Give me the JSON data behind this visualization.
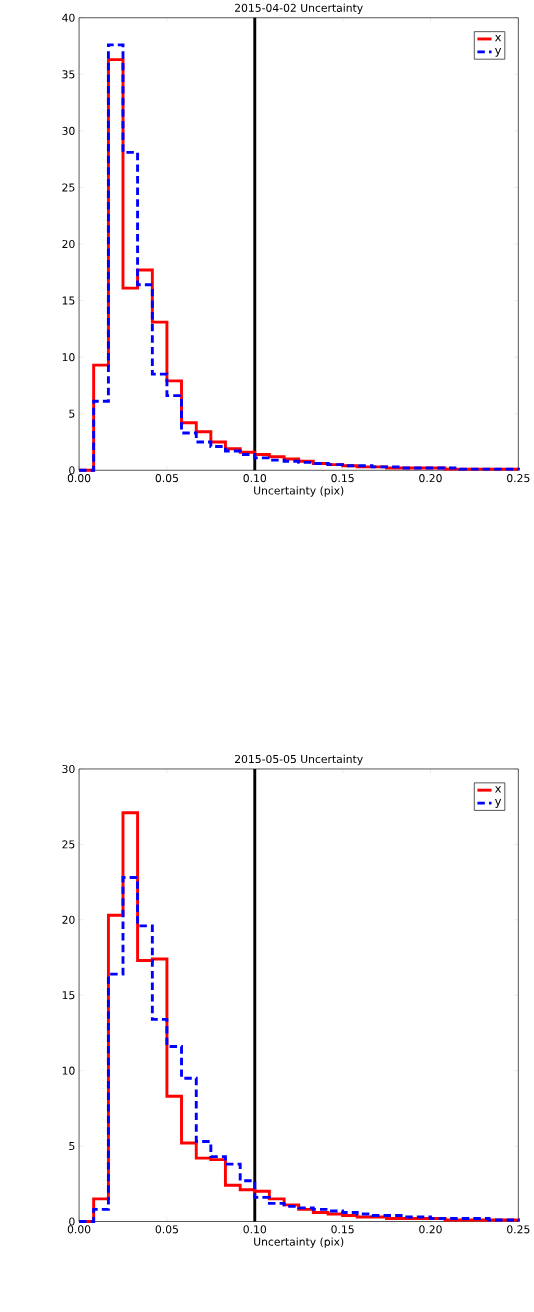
{
  "chart_data": [
    {
      "type": "histogram",
      "title": "2015-04-02 Uncertainty",
      "xlabel": "Uncertainty (pix)",
      "bins": [
        0,
        0.0083,
        0.0167,
        0.025,
        0.0333,
        0.0417,
        0.05,
        0.0583,
        0.0667,
        0.075,
        0.0833,
        0.0917,
        0.1,
        0.1083,
        0.1167,
        0.125,
        0.1333,
        0.1417,
        0.15,
        0.1583,
        0.1667,
        0.175,
        0.1833,
        0.1917,
        0.2,
        0.2083,
        0.2167,
        0.225,
        0.2333,
        0.2417,
        0.25
      ],
      "series": [
        {
          "name": "x",
          "color": "#ff0000",
          "line_style": "solid",
          "values": [
            0,
            9.3,
            36.3,
            16.1,
            17.7,
            13.1,
            7.9,
            4.2,
            3.4,
            2.5,
            1.9,
            1.6,
            1.4,
            1.2,
            1.0,
            0.8,
            0.6,
            0.5,
            0.4,
            0.3,
            0.3,
            0.2,
            0.2,
            0.2,
            0.2,
            0.1,
            0.1,
            0.1,
            0.1,
            0.1
          ]
        },
        {
          "name": "y",
          "color": "#0000ff",
          "line_style": "dashed",
          "values": [
            0,
            6.1,
            37.6,
            28.1,
            16.4,
            8.5,
            6.6,
            3.3,
            2.5,
            2.1,
            1.7,
            1.4,
            1.1,
            0.9,
            0.8,
            0.7,
            0.6,
            0.5,
            0.4,
            0.4,
            0.3,
            0.3,
            0.2,
            0.2,
            0.2,
            0.2,
            0.1,
            0.1,
            0.1,
            0.1
          ]
        }
      ],
      "xlim": [
        0,
        0.25
      ],
      "ylim": [
        0,
        40
      ],
      "xticks": [
        {
          "value": 0,
          "label": "0.00"
        },
        {
          "value": 0.05,
          "label": "0.05"
        },
        {
          "value": 0.1,
          "label": "0.10"
        },
        {
          "value": 0.15,
          "label": "0.15"
        },
        {
          "value": 0.2,
          "label": "0.20"
        },
        {
          "value": 0.25,
          "label": "0.25"
        }
      ],
      "yticks": [
        0,
        5,
        10,
        15,
        20,
        25,
        30,
        35,
        40
      ],
      "ref_lines": [
        {
          "axis": "x",
          "value": 0.1,
          "color": "#000000"
        }
      ],
      "legend": "top right"
    },
    {
      "type": "histogram",
      "title": "2015-05-05 Uncertainty",
      "xlabel": "Uncertainty (pix)",
      "bins": [
        0,
        0.0083,
        0.0167,
        0.025,
        0.0333,
        0.0417,
        0.05,
        0.0583,
        0.0667,
        0.075,
        0.0833,
        0.0917,
        0.1,
        0.1083,
        0.1167,
        0.125,
        0.1333,
        0.1417,
        0.15,
        0.1583,
        0.1667,
        0.175,
        0.1833,
        0.1917,
        0.2,
        0.2083,
        0.2167,
        0.225,
        0.2333,
        0.2417,
        0.25
      ],
      "series": [
        {
          "name": "x",
          "color": "#ff0000",
          "line_style": "solid",
          "values": [
            0,
            1.5,
            20.3,
            27.1,
            17.3,
            17.4,
            8.3,
            5.2,
            4.2,
            4.1,
            2.4,
            2.1,
            2.0,
            1.5,
            1.1,
            0.8,
            0.6,
            0.5,
            0.4,
            0.3,
            0.3,
            0.2,
            0.2,
            0.2,
            0.2,
            0.1,
            0.1,
            0.1,
            0.1,
            0.1
          ]
        },
        {
          "name": "y",
          "color": "#0000ff",
          "line_style": "dashed",
          "values": [
            0,
            0.8,
            16.4,
            22.8,
            19.6,
            13.4,
            11.6,
            9.5,
            5.3,
            4.3,
            3.8,
            2.7,
            1.6,
            1.2,
            1.0,
            0.9,
            0.8,
            0.7,
            0.6,
            0.5,
            0.4,
            0.4,
            0.3,
            0.3,
            0.2,
            0.2,
            0.2,
            0.2,
            0.1,
            0.1
          ]
        }
      ],
      "xlim": [
        0,
        0.25
      ],
      "ylim": [
        0,
        30
      ],
      "xticks": [
        {
          "value": 0,
          "label": "0.00"
        },
        {
          "value": 0.05,
          "label": "0.05"
        },
        {
          "value": 0.1,
          "label": "0.10"
        },
        {
          "value": 0.15,
          "label": "0.15"
        },
        {
          "value": 0.2,
          "label": "0.20"
        },
        {
          "value": 0.25,
          "label": "0.25"
        }
      ],
      "yticks": [
        0,
        5,
        10,
        15,
        20,
        25,
        30
      ],
      "ref_lines": [
        {
          "axis": "x",
          "value": 0.1,
          "color": "#000000"
        }
      ],
      "legend": "top right"
    }
  ]
}
